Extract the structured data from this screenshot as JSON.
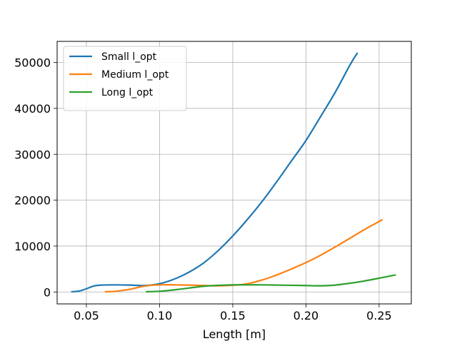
{
  "chart_data": {
    "type": "line",
    "title": "",
    "xlabel": "Length [m]",
    "ylabel": "",
    "xlim": [
      0.03,
      0.272
    ],
    "ylim": [
      -2600,
      54600
    ],
    "xticks": [
      0.05,
      0.1,
      0.15,
      0.2,
      0.25
    ],
    "xtick_labels": [
      "0.05",
      "0.10",
      "0.15",
      "0.20",
      "0.25"
    ],
    "yticks": [
      0,
      10000,
      20000,
      30000,
      40000,
      50000
    ],
    "ytick_labels": [
      "0",
      "10000",
      "20000",
      "30000",
      "40000",
      "50000"
    ],
    "grid": true,
    "legend_position": "top-left",
    "series": [
      {
        "name": "Small l_opt",
        "color": "#1f77b4",
        "points": [
          [
            0.04,
            50
          ],
          [
            0.045,
            200
          ],
          [
            0.05,
            700
          ],
          [
            0.055,
            1300
          ],
          [
            0.06,
            1500
          ],
          [
            0.07,
            1550
          ],
          [
            0.08,
            1500
          ],
          [
            0.09,
            1400
          ],
          [
            0.1,
            1800
          ],
          [
            0.11,
            2800
          ],
          [
            0.12,
            4300
          ],
          [
            0.13,
            6300
          ],
          [
            0.14,
            9000
          ],
          [
            0.15,
            12200
          ],
          [
            0.16,
            15800
          ],
          [
            0.17,
            19700
          ],
          [
            0.18,
            24000
          ],
          [
            0.19,
            28500
          ],
          [
            0.2,
            33000
          ],
          [
            0.21,
            38200
          ],
          [
            0.22,
            43500
          ],
          [
            0.23,
            49400
          ],
          [
            0.235,
            52000
          ]
        ]
      },
      {
        "name": "Medium l_opt",
        "color": "#ff7f0e",
        "points": [
          [
            0.063,
            50
          ],
          [
            0.07,
            150
          ],
          [
            0.08,
            600
          ],
          [
            0.09,
            1300
          ],
          [
            0.1,
            1550
          ],
          [
            0.11,
            1550
          ],
          [
            0.12,
            1500
          ],
          [
            0.13,
            1400
          ],
          [
            0.14,
            1350
          ],
          [
            0.15,
            1450
          ],
          [
            0.16,
            1800
          ],
          [
            0.17,
            2600
          ],
          [
            0.18,
            3700
          ],
          [
            0.19,
            5000
          ],
          [
            0.2,
            6400
          ],
          [
            0.21,
            8000
          ],
          [
            0.22,
            9800
          ],
          [
            0.23,
            11700
          ],
          [
            0.24,
            13600
          ],
          [
            0.252,
            15700
          ]
        ]
      },
      {
        "name": "Long l_opt",
        "color": "#2ca02c",
        "points": [
          [
            0.091,
            50
          ],
          [
            0.1,
            150
          ],
          [
            0.11,
            450
          ],
          [
            0.12,
            850
          ],
          [
            0.13,
            1250
          ],
          [
            0.14,
            1450
          ],
          [
            0.15,
            1550
          ],
          [
            0.16,
            1550
          ],
          [
            0.17,
            1550
          ],
          [
            0.18,
            1500
          ],
          [
            0.19,
            1450
          ],
          [
            0.2,
            1400
          ],
          [
            0.21,
            1350
          ],
          [
            0.22,
            1500
          ],
          [
            0.23,
            1900
          ],
          [
            0.24,
            2400
          ],
          [
            0.25,
            3000
          ],
          [
            0.261,
            3700
          ]
        ]
      }
    ]
  }
}
